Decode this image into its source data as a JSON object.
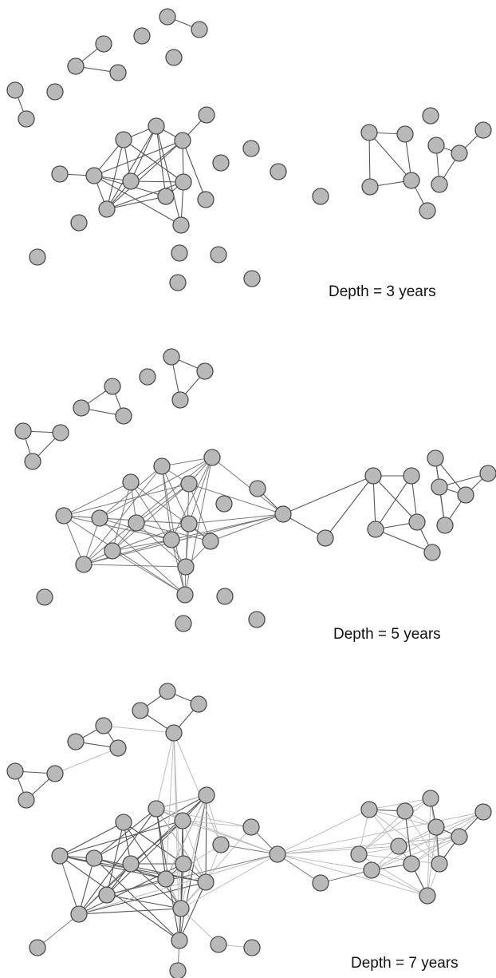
{
  "figure": {
    "panels": [
      {
        "label": "Depth = 3 years"
      },
      {
        "label": "Depth = 5 years"
      },
      {
        "label": "Depth = 7 years"
      }
    ]
  },
  "colors": {
    "background": "#ffffff",
    "node_fill": "#b9b9b9",
    "node_stroke": "#4a4a4a",
    "strong_edge": "#555555",
    "weak_edge": "#bdbdbd",
    "text": "#111111"
  }
}
